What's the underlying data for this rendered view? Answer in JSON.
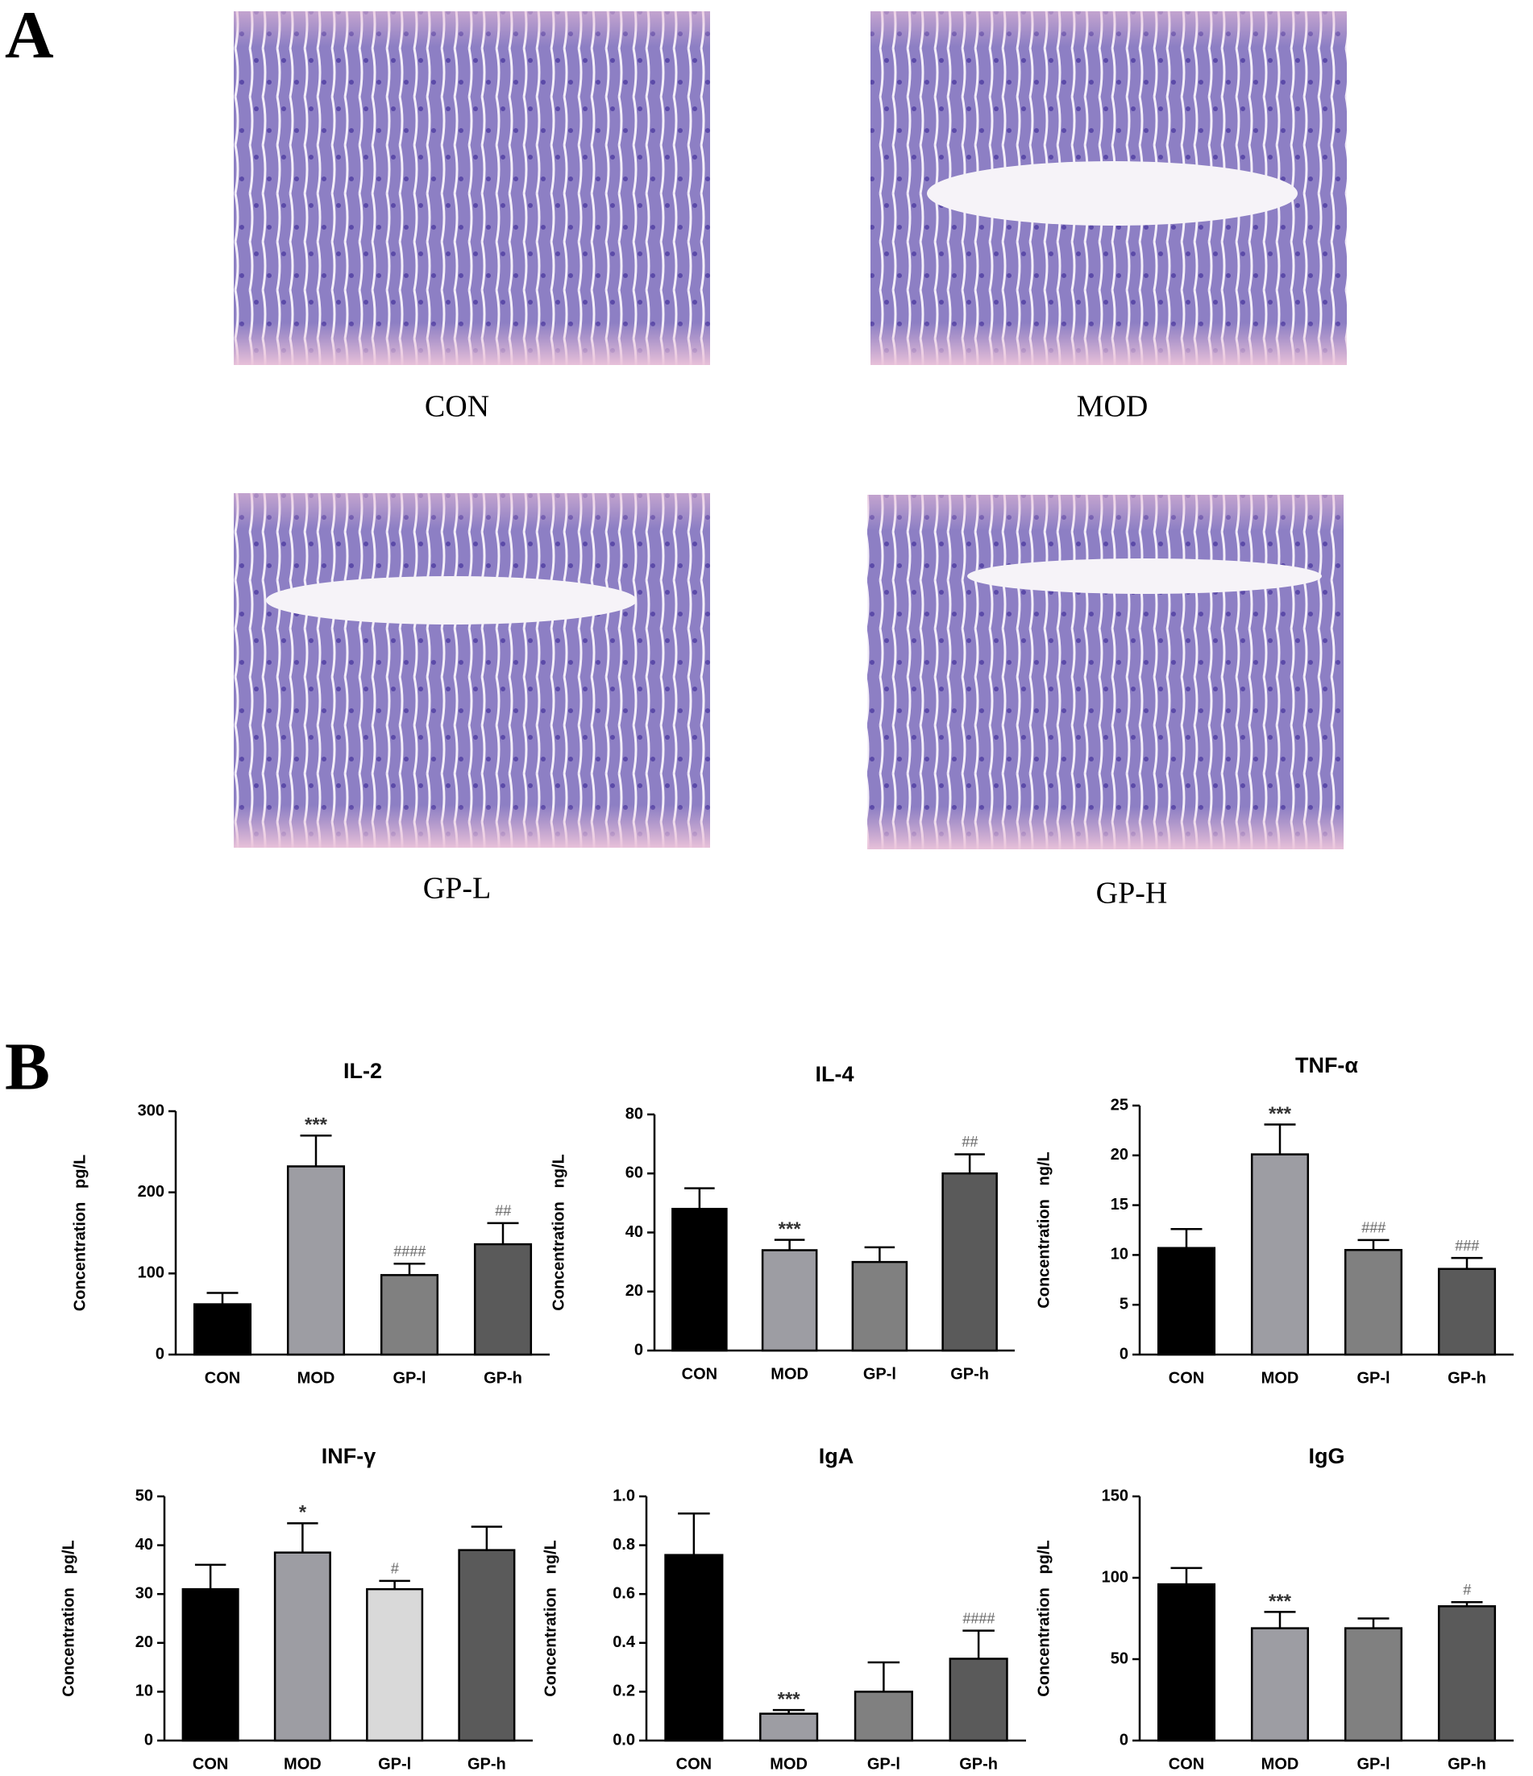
{
  "panel_labels": [
    "A",
    "B"
  ],
  "images": [
    {
      "caption": "CON"
    },
    {
      "caption": "MOD"
    },
    {
      "caption": "GP-L"
    },
    {
      "caption": "GP-H"
    }
  ],
  "chart_data": [
    {
      "type": "bar",
      "title": "IL-2",
      "ylabel": "Concentration   pg/L",
      "categories": [
        "CON",
        "MOD",
        "GP-l",
        "GP-h"
      ],
      "values": [
        62,
        232,
        98,
        136
      ],
      "errors": [
        14,
        38,
        14,
        26
      ],
      "annotations": [
        null,
        "***",
        "####",
        "##"
      ],
      "colors": [
        "#000000",
        "#9d9da3",
        "#808080",
        "#5a5a5a"
      ],
      "ylim": [
        0,
        300
      ],
      "yticks": [
        0,
        100,
        200,
        300
      ]
    },
    {
      "type": "bar",
      "title": "IL-4",
      "ylabel": "Concentration   ng/L",
      "categories": [
        "CON",
        "MOD",
        "GP-l",
        "GP-h"
      ],
      "values": [
        48,
        34,
        30,
        60
      ],
      "errors": [
        7,
        3.5,
        5,
        6.5
      ],
      "annotations": [
        null,
        "***",
        null,
        "##"
      ],
      "colors": [
        "#000000",
        "#9d9da3",
        "#808080",
        "#5a5a5a"
      ],
      "ylim": [
        0,
        80
      ],
      "yticks": [
        0,
        20,
        40,
        60,
        80
      ]
    },
    {
      "type": "bar",
      "title": "TNF-α",
      "ylabel": "Concentration   ng/L",
      "categories": [
        "CON",
        "MOD",
        "GP-l",
        "GP-h"
      ],
      "values": [
        10.7,
        20.1,
        10.5,
        8.6
      ],
      "errors": [
        1.9,
        3,
        1,
        1.1
      ],
      "annotations": [
        null,
        "***",
        "###",
        "###"
      ],
      "colors": [
        "#000000",
        "#9d9da3",
        "#808080",
        "#5a5a5a"
      ],
      "ylim": [
        0,
        25
      ],
      "yticks": [
        0,
        5,
        10,
        15,
        20,
        25
      ]
    },
    {
      "type": "bar",
      "title": "INF-γ",
      "ylabel": "Concentration   pg/L",
      "categories": [
        "CON",
        "MOD",
        "GP-l",
        "GP-h"
      ],
      "values": [
        31,
        38.5,
        31,
        39
      ],
      "errors": [
        5,
        6,
        1.7,
        4.8
      ],
      "annotations": [
        null,
        "*",
        "#",
        null
      ],
      "colors": [
        "#000000",
        "#9d9da3",
        "#d9d9d9",
        "#5a5a5a"
      ],
      "ylim": [
        0,
        50
      ],
      "yticks": [
        0,
        10,
        20,
        30,
        40,
        50
      ]
    },
    {
      "type": "bar",
      "title": "IgA",
      "ylabel": "Concentration   ng/L",
      "categories": [
        "CON",
        "MOD",
        "GP-l",
        "GP-h"
      ],
      "values": [
        0.76,
        0.11,
        0.2,
        0.335
      ],
      "errors": [
        0.17,
        0.015,
        0.12,
        0.115
      ],
      "annotations": [
        null,
        "***",
        null,
        "####"
      ],
      "colors": [
        "#000000",
        "#9d9da3",
        "#808080",
        "#5a5a5a"
      ],
      "ylim": [
        0,
        1
      ],
      "yticks": [
        {
          "value": 0,
          "label": "0.0"
        },
        0.2,
        0.4,
        0.6,
        0.8,
        {
          "value": 1,
          "label": "1.0"
        }
      ]
    },
    {
      "type": "bar",
      "title": "IgG",
      "ylabel": "Concentration   pg/L",
      "categories": [
        "CON",
        "MOD",
        "GP-l",
        "GP-h"
      ],
      "values": [
        96,
        69,
        69,
        82.5
      ],
      "errors": [
        10,
        10,
        6,
        2.5
      ],
      "annotations": [
        null,
        "***",
        null,
        "#"
      ],
      "colors": [
        "#000000",
        "#9d9da3",
        "#808080",
        "#5a5a5a"
      ],
      "ylim": [
        0,
        150
      ],
      "yticks": [
        0,
        50,
        100,
        150
      ]
    }
  ]
}
